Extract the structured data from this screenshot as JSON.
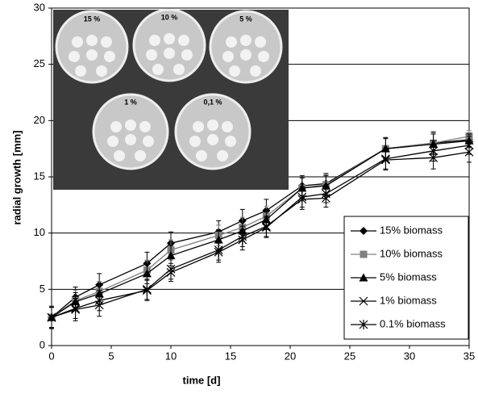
{
  "chart_data": {
    "type": "line",
    "x_label": "time [d]",
    "y_label": "radial growth [mm]",
    "x": [
      0,
      2,
      4,
      8,
      10,
      14,
      16,
      18,
      21,
      23,
      28,
      32,
      35
    ],
    "series": [
      {
        "name": "15% biomass",
        "color": "#000000",
        "marker": "diamond",
        "values": [
          2.5,
          4.3,
          5.4,
          7.3,
          9.1,
          10.1,
          11.1,
          12.0,
          14.2,
          14.4,
          17.5,
          18.0,
          18.3
        ],
        "errors": [
          1.0,
          0.9,
          1.0,
          1.0,
          1.0,
          1.0,
          1.0,
          1.0,
          0.9,
          0.9,
          1.0,
          1.0,
          0.6
        ]
      },
      {
        "name": "10% biomass",
        "color": "#808080",
        "marker": "square",
        "values": [
          2.5,
          4.0,
          4.8,
          6.7,
          8.5,
          9.8,
          10.5,
          11.5,
          14.0,
          14.3,
          17.5,
          18.0,
          18.6
        ],
        "errors": [
          0.9,
          0.9,
          0.9,
          0.9,
          0.9,
          0.9,
          0.9,
          0.9,
          0.9,
          0.9,
          0.9,
          0.9,
          0.5
        ]
      },
      {
        "name": "5% biomass",
        "color": "#000000",
        "marker": "triangle",
        "values": [
          2.5,
          3.9,
          4.6,
          6.4,
          8.0,
          9.4,
          10.2,
          11.2,
          14.0,
          14.2,
          17.5,
          17.9,
          18.2
        ],
        "errors": [
          0.9,
          0.8,
          0.9,
          0.9,
          0.9,
          0.9,
          0.9,
          0.9,
          0.9,
          0.9,
          0.9,
          0.9,
          0.6
        ]
      },
      {
        "name": "1% biomass",
        "color": "#000000",
        "marker": "x",
        "values": [
          2.5,
          3.2,
          3.6,
          5.0,
          6.8,
          8.5,
          9.7,
          10.6,
          13.0,
          13.1,
          16.5,
          16.7,
          17.2
        ],
        "errors": [
          0.9,
          1.0,
          1.0,
          0.9,
          0.9,
          0.9,
          0.9,
          0.9,
          0.9,
          0.8,
          0.9,
          1.0,
          0.9
        ]
      },
      {
        "name": "0.1% biomass",
        "color": "#000000",
        "marker": "asterisk",
        "values": [
          2.5,
          3.3,
          4.0,
          4.9,
          6.5,
          8.3,
          9.4,
          10.5,
          13.2,
          13.5,
          16.6,
          17.3,
          17.8
        ],
        "errors": [
          0.9,
          0.9,
          0.9,
          0.9,
          0.8,
          0.9,
          0.9,
          0.9,
          0.9,
          0.8,
          0.9,
          0.9,
          0.8
        ]
      }
    ],
    "xlim": [
      0,
      35
    ],
    "xticks": [
      0,
      5,
      10,
      15,
      20,
      25,
      30,
      35
    ],
    "ylim": [
      0,
      30
    ],
    "yticks": [
      0,
      5,
      10,
      15,
      20,
      25,
      30
    ],
    "grid": true,
    "legend": "lower right",
    "inset_photo_labels": [
      "15 %",
      "10 %",
      "5 %",
      "1 %",
      "0,1 %"
    ]
  }
}
